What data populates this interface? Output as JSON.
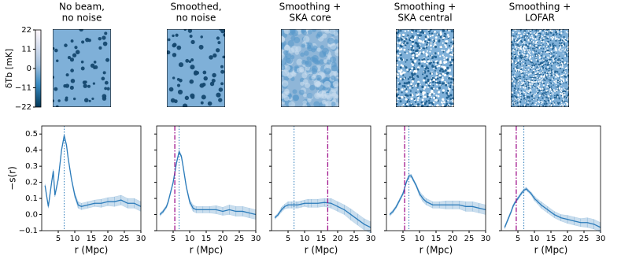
{
  "colorbar": {
    "label": "δTb [mK]",
    "ylim": [
      -22,
      22
    ],
    "yticks": [
      22,
      11,
      0,
      {
        "value": -11,
        "label": "−11"
      },
      {
        "value": -22,
        "label": "−22"
      }
    ]
  },
  "chart_data": [
    {
      "type": "line",
      "title": [
        "No beam,",
        "no noise"
      ],
      "y_label": "−s(r)",
      "x_label": "r (Mpc)",
      "xlim": [
        0,
        30
      ],
      "xticks": [
        5,
        10,
        15,
        20,
        25,
        30
      ],
      "ylim": [
        -0.1,
        0.55
      ],
      "yticks": [
        {
          "value": -0.1,
          "label": "−0.1"
        },
        {
          "value": 0,
          "label": "0.0"
        },
        0.1,
        0.2,
        0.3,
        0.4,
        0.5
      ],
      "show_ytick_labels": true,
      "x": [
        1,
        2,
        3,
        3.5,
        4,
        5,
        6,
        6.8,
        7.5,
        8,
        9,
        10,
        11,
        12,
        14,
        16,
        18,
        20,
        22,
        24,
        26,
        28,
        30
      ],
      "series": [
        {
          "color": "#2b7bba",
          "values": [
            0.18,
            0.05,
            0.2,
            0.27,
            0.12,
            0.22,
            0.4,
            0.49,
            0.43,
            0.35,
            0.22,
            0.12,
            0.06,
            0.05,
            0.06,
            0.07,
            0.07,
            0.08,
            0.08,
            0.09,
            0.07,
            0.07,
            0.05
          ],
          "errors": [
            0.01,
            0.01,
            0.01,
            0.01,
            0.01,
            0.01,
            0.01,
            0.01,
            0.01,
            0.01,
            0.01,
            0.015,
            0.02,
            0.02,
            0.02,
            0.02,
            0.025,
            0.025,
            0.03,
            0.03,
            0.03,
            0.03,
            0.03
          ]
        }
      ],
      "vlines": [
        {
          "x": 6.8,
          "color": "#2b7bba",
          "style": "dotted"
        }
      ]
    },
    {
      "type": "line",
      "title": [
        "Smoothed,",
        "no noise"
      ],
      "x_label": "r (Mpc)",
      "xlim": [
        0,
        30
      ],
      "xticks": [
        5,
        10,
        15,
        20,
        25,
        30
      ],
      "ylim": [
        -0.1,
        0.55
      ],
      "yticks": [
        -0.1,
        0,
        0.1,
        0.2,
        0.3,
        0.4,
        0.5
      ],
      "show_ytick_labels": false,
      "x": [
        1,
        2,
        3,
        3.5,
        4,
        5,
        6,
        6.8,
        7.5,
        8,
        9,
        10,
        11,
        12,
        14,
        16,
        18,
        20,
        22,
        24,
        26,
        28,
        30
      ],
      "series": [
        {
          "color": "#2b7bba",
          "values": [
            0.0,
            0.02,
            0.05,
            0.08,
            0.12,
            0.2,
            0.32,
            0.39,
            0.36,
            0.3,
            0.17,
            0.08,
            0.04,
            0.03,
            0.03,
            0.03,
            0.03,
            0.02,
            0.03,
            0.02,
            0.02,
            0.01,
            0.0
          ],
          "errors": [
            0.01,
            0.01,
            0.01,
            0.01,
            0.01,
            0.01,
            0.01,
            0.01,
            0.01,
            0.01,
            0.01,
            0.015,
            0.02,
            0.02,
            0.02,
            0.02,
            0.025,
            0.025,
            0.03,
            0.03,
            0.03,
            0.03,
            0.03
          ]
        }
      ],
      "vlines": [
        {
          "x": 6.8,
          "color": "#2b7bba",
          "style": "dotted"
        },
        {
          "x": 5.5,
          "color": "#a0148c",
          "style": "dashdot"
        }
      ]
    },
    {
      "type": "line",
      "title": [
        "Smoothing +",
        "SKA core"
      ],
      "x_label": "r (Mpc)",
      "xlim": [
        0,
        30
      ],
      "xticks": [
        5,
        10,
        15,
        20,
        25,
        30
      ],
      "ylim": [
        -0.1,
        0.55
      ],
      "yticks": [
        -0.1,
        0,
        0.1,
        0.2,
        0.3,
        0.4,
        0.5
      ],
      "show_ytick_labels": false,
      "x": [
        1,
        2,
        3,
        3.5,
        4,
        5,
        6,
        6.8,
        7.5,
        8,
        9,
        10,
        11,
        12,
        14,
        16,
        18,
        20,
        22,
        24,
        26,
        28,
        30
      ],
      "series": [
        {
          "color": "#2b7bba",
          "values": [
            -0.02,
            0.0,
            0.03,
            0.04,
            0.05,
            0.06,
            0.06,
            0.06,
            0.06,
            0.06,
            0.065,
            0.07,
            0.07,
            0.07,
            0.07,
            0.075,
            0.07,
            0.05,
            0.03,
            0.0,
            -0.03,
            -0.06,
            -0.08
          ],
          "errors": [
            0.01,
            0.01,
            0.015,
            0.015,
            0.015,
            0.02,
            0.02,
            0.02,
            0.02,
            0.02,
            0.02,
            0.02,
            0.025,
            0.025,
            0.025,
            0.025,
            0.03,
            0.03,
            0.03,
            0.035,
            0.035,
            0.035,
            0.035
          ]
        }
      ],
      "vlines": [
        {
          "x": 6.8,
          "color": "#2b7bba",
          "style": "dotted"
        },
        {
          "x": 17,
          "color": "#a0148c",
          "style": "dashdot"
        }
      ]
    },
    {
      "type": "line",
      "title": [
        "Smoothing +",
        "SKA central"
      ],
      "x_label": "r (Mpc)",
      "xlim": [
        0,
        30
      ],
      "xticks": [
        5,
        10,
        15,
        20,
        25,
        30
      ],
      "ylim": [
        -0.1,
        0.55
      ],
      "yticks": [
        -0.1,
        0,
        0.1,
        0.2,
        0.3,
        0.4,
        0.5
      ],
      "show_ytick_labels": false,
      "x": [
        1,
        2,
        3,
        3.5,
        4,
        5,
        6,
        6.8,
        7.5,
        8,
        9,
        10,
        11,
        12,
        14,
        16,
        18,
        20,
        22,
        24,
        26,
        28,
        30
      ],
      "series": [
        {
          "color": "#2b7bba",
          "values": [
            0.0,
            0.02,
            0.05,
            0.07,
            0.09,
            0.13,
            0.2,
            0.24,
            0.24,
            0.22,
            0.18,
            0.13,
            0.1,
            0.08,
            0.06,
            0.06,
            0.06,
            0.06,
            0.06,
            0.05,
            0.05,
            0.04,
            0.03
          ],
          "errors": [
            0.01,
            0.01,
            0.01,
            0.01,
            0.01,
            0.01,
            0.01,
            0.01,
            0.01,
            0.01,
            0.01,
            0.015,
            0.02,
            0.02,
            0.02,
            0.02,
            0.025,
            0.025,
            0.025,
            0.03,
            0.03,
            0.03,
            0.03
          ]
        }
      ],
      "vlines": [
        {
          "x": 6.8,
          "color": "#2b7bba",
          "style": "dotted"
        },
        {
          "x": 5.5,
          "color": "#a0148c",
          "style": "dashdot"
        }
      ]
    },
    {
      "type": "line",
      "title": [
        "Smoothing +",
        "LOFAR"
      ],
      "x_label": "r (Mpc)",
      "xlim": [
        0,
        30
      ],
      "xticks": [
        5,
        10,
        15,
        20,
        25,
        30
      ],
      "ylim": [
        -0.1,
        0.55
      ],
      "yticks": [
        -0.1,
        0,
        0.1,
        0.2,
        0.3,
        0.4,
        0.5
      ],
      "show_ytick_labels": false,
      "x": [
        1,
        2,
        3,
        3.5,
        4,
        5,
        6,
        6.8,
        7.5,
        8,
        9,
        10,
        11,
        12,
        14,
        16,
        18,
        20,
        22,
        24,
        26,
        28,
        30
      ],
      "series": [
        {
          "color": "#2b7bba",
          "values": [
            -0.08,
            -0.03,
            0.02,
            0.05,
            0.07,
            0.1,
            0.13,
            0.15,
            0.16,
            0.15,
            0.13,
            0.1,
            0.08,
            0.06,
            0.03,
            0.0,
            -0.02,
            -0.03,
            -0.04,
            -0.05,
            -0.05,
            -0.06,
            -0.08
          ],
          "errors": [
            0.01,
            0.01,
            0.01,
            0.01,
            0.01,
            0.01,
            0.01,
            0.01,
            0.01,
            0.01,
            0.01,
            0.015,
            0.015,
            0.02,
            0.02,
            0.02,
            0.02,
            0.025,
            0.025,
            0.025,
            0.03,
            0.03,
            0.03
          ]
        }
      ],
      "vlines": [
        {
          "x": 6.8,
          "color": "#2b7bba",
          "style": "dotted"
        },
        {
          "x": 4.5,
          "color": "#a0148c",
          "style": "dashdot"
        }
      ]
    }
  ]
}
